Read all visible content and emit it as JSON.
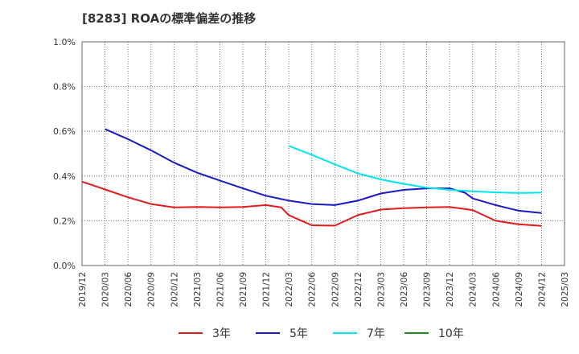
{
  "chart_data": {
    "type": "line",
    "title": "[8283]  ROAの標準偏差の推移",
    "xlabel": "",
    "ylabel": "",
    "ylim": [
      0,
      1.0
    ],
    "yticks": [
      "0.0%",
      "0.2%",
      "0.4%",
      "0.6%",
      "0.8%",
      "1.0%"
    ],
    "ytick_values": [
      0,
      0.2,
      0.4,
      0.6,
      0.8,
      1.0
    ],
    "xticks": [
      "2019/12",
      "2020/03",
      "2020/06",
      "2020/09",
      "2020/12",
      "2021/03",
      "2021/06",
      "2021/09",
      "2021/12",
      "2022/03",
      "2022/06",
      "2022/09",
      "2022/12",
      "2023/03",
      "2023/06",
      "2023/09",
      "2023/12",
      "2024/03",
      "2024/06",
      "2024/09",
      "2024/12",
      "2025/03"
    ],
    "grid": true,
    "legend_position": "bottom",
    "series": [
      {
        "name": "3年",
        "color": "#e31a1c",
        "points": [
          [
            "2019/12",
            0.375
          ],
          [
            "2020/03",
            0.34
          ],
          [
            "2020/06",
            0.305
          ],
          [
            "2020/09",
            0.275
          ],
          [
            "2020/12",
            0.26
          ],
          [
            "2021/03",
            0.262
          ],
          [
            "2021/06",
            0.26
          ],
          [
            "2021/09",
            0.262
          ],
          [
            "2021/12",
            0.27
          ],
          [
            "2022/02",
            0.26
          ],
          [
            "2022/03",
            0.225
          ],
          [
            "2022/06",
            0.18
          ],
          [
            "2022/09",
            0.178
          ],
          [
            "2022/12",
            0.225
          ],
          [
            "2023/03",
            0.25
          ],
          [
            "2023/06",
            0.256
          ],
          [
            "2023/09",
            0.26
          ],
          [
            "2023/12",
            0.262
          ],
          [
            "2024/03",
            0.248
          ],
          [
            "2024/06",
            0.2
          ],
          [
            "2024/09",
            0.184
          ],
          [
            "2024/12",
            0.177
          ]
        ]
      },
      {
        "name": "5年",
        "color": "#1919c8",
        "points": [
          [
            "2020/03",
            0.61
          ],
          [
            "2020/06",
            0.565
          ],
          [
            "2020/09",
            0.515
          ],
          [
            "2020/12",
            0.46
          ],
          [
            "2021/03",
            0.415
          ],
          [
            "2021/06",
            0.38
          ],
          [
            "2021/09",
            0.345
          ],
          [
            "2021/12",
            0.312
          ],
          [
            "2022/03",
            0.29
          ],
          [
            "2022/06",
            0.275
          ],
          [
            "2022/09",
            0.27
          ],
          [
            "2022/12",
            0.29
          ],
          [
            "2023/03",
            0.322
          ],
          [
            "2023/06",
            0.338
          ],
          [
            "2023/09",
            0.345
          ],
          [
            "2023/12",
            0.345
          ],
          [
            "2024/02",
            0.325
          ],
          [
            "2024/03",
            0.3
          ],
          [
            "2024/06",
            0.27
          ],
          [
            "2024/09",
            0.245
          ],
          [
            "2024/12",
            0.235
          ]
        ]
      },
      {
        "name": "7年",
        "color": "#00e5ee",
        "points": [
          [
            "2022/03",
            0.535
          ],
          [
            "2022/06",
            0.495
          ],
          [
            "2022/09",
            0.452
          ],
          [
            "2022/12",
            0.412
          ],
          [
            "2023/03",
            0.385
          ],
          [
            "2023/06",
            0.365
          ],
          [
            "2023/09",
            0.348
          ],
          [
            "2023/12",
            0.338
          ],
          [
            "2024/03",
            0.332
          ],
          [
            "2024/06",
            0.327
          ],
          [
            "2024/09",
            0.324
          ],
          [
            "2024/12",
            0.326
          ]
        ]
      },
      {
        "name": "10年",
        "color": "#1e8c1e",
        "points": []
      }
    ]
  }
}
